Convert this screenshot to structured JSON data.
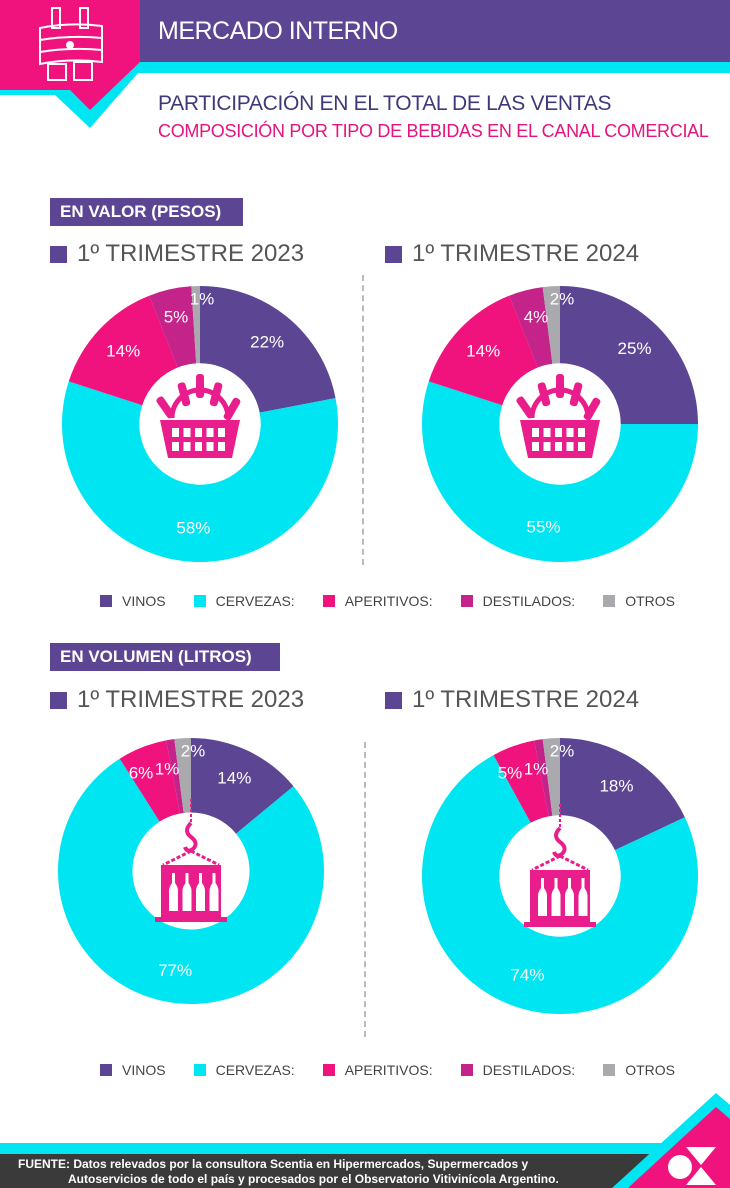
{
  "header": {
    "title": "MERCADO INTERNO",
    "main_title": "PARTICIPACIÓN EN EL TOTAL DE LAS VENTAS",
    "subtitle": "COMPOSICIÓN POR TIPO DE BEBIDAS EN EL CANAL COMERCIAL"
  },
  "colors": {
    "vinos": "#5c4694",
    "cervezas": "#00e5f2",
    "aperitivos": "#f0127d",
    "destilados": "#c4238a",
    "otros": "#a9a9ae",
    "icon": "#e91e8c"
  },
  "legend": [
    "VINOS",
    "CERVEZAS:",
    "APERITIVOS:",
    "DESTILADOS:",
    "OTROS"
  ],
  "sections": [
    {
      "label": "EN VALOR (PESOS)",
      "icon": "shopping-basket-icon"
    },
    {
      "label": "EN VOLUMEN (LITROS)",
      "icon": "crane-crate-icon"
    }
  ],
  "chart_data": [
    {
      "type": "pie",
      "title": "1º TRIMESTRE 2023",
      "section": "EN VALOR (PESOS)",
      "categories": [
        "VINOS",
        "CERVEZAS",
        "APERITIVOS",
        "DESTILADOS",
        "OTROS"
      ],
      "values": [
        22,
        58,
        14,
        5,
        1
      ],
      "labels": [
        "22%",
        "58%",
        "14%",
        "5%",
        "1%"
      ]
    },
    {
      "type": "pie",
      "title": "1º TRIMESTRE 2024",
      "section": "EN VALOR (PESOS)",
      "categories": [
        "VINOS",
        "CERVEZAS",
        "APERITIVOS",
        "DESTILADOS",
        "OTROS"
      ],
      "values": [
        25,
        55,
        14,
        4,
        2
      ],
      "labels": [
        "25%",
        "55%",
        "14%",
        "4%",
        "2%"
      ]
    },
    {
      "type": "pie",
      "title": "1º TRIMESTRE 2023",
      "section": "EN VOLUMEN (LITROS)",
      "categories": [
        "VINOS",
        "CERVEZAS",
        "APERITIVOS",
        "DESTILADOS",
        "OTROS"
      ],
      "values": [
        14,
        77,
        6,
        1,
        2
      ],
      "labels": [
        "14%",
        "77%",
        "6%",
        "1%",
        "2%"
      ]
    },
    {
      "type": "pie",
      "title": "1º TRIMESTRE 2024",
      "section": "EN VOLUMEN (LITROS)",
      "categories": [
        "VINOS",
        "CERVEZAS",
        "APERITIVOS",
        "DESTILADOS",
        "OTROS"
      ],
      "values": [
        18,
        74,
        5,
        1,
        2
      ],
      "labels": [
        "18%",
        "74%",
        "5%",
        "1%",
        "2%"
      ]
    }
  ],
  "footer": {
    "line1": "FUENTE: Datos relevados por la consultora Scentia en Hipermercados, Supermercados y",
    "line2": "Autoservicios de todo el país y procesados por el Observatorio Vitivinícola Argentino."
  }
}
